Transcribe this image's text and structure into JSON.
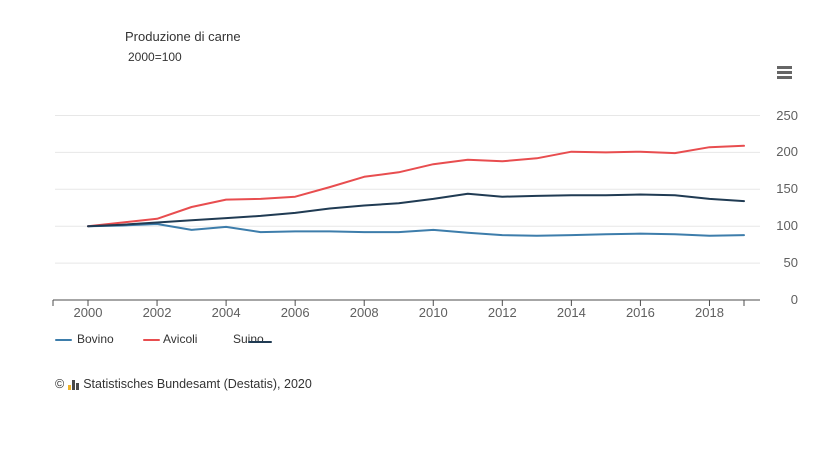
{
  "chart": {
    "title": "Produzione di carne",
    "subtitle": "2000=100",
    "menu_icon": "hamburger-menu-icon",
    "credits_symbol": "©",
    "credits_logo": "destatis-bar-chart-icon",
    "credits": "Statistisches Bundesamt (Destatis), 2020"
  },
  "chart_data": {
    "type": "line",
    "title": "Produzione di carne",
    "subtitle": "2000=100",
    "x": [
      2000,
      2001,
      2002,
      2003,
      2004,
      2005,
      2006,
      2007,
      2008,
      2009,
      2010,
      2011,
      2012,
      2013,
      2014,
      2015,
      2016,
      2017,
      2018,
      2019
    ],
    "series": [
      {
        "name": "Bovino",
        "color": "#3d7dab",
        "values": [
          100,
          101,
          103,
          95,
          99,
          92,
          93,
          93,
          92,
          92,
          95,
          91,
          88,
          87,
          88,
          89,
          90,
          89,
          87,
          88
        ]
      },
      {
        "name": "Avicoli",
        "color": "#e84d4f",
        "values": [
          100,
          105,
          110,
          126,
          136,
          137,
          140,
          153,
          167,
          173,
          184,
          190,
          188,
          192,
          201,
          200,
          201,
          199,
          207,
          209
        ]
      },
      {
        "name": "Suino",
        "color": "#203b53",
        "values": [
          100,
          102,
          105,
          108,
          111,
          114,
          118,
          124,
          128,
          131,
          137,
          144,
          140,
          141,
          142,
          142,
          143,
          142,
          137,
          134
        ]
      }
    ],
    "xticks": [
      2000,
      2002,
      2004,
      2006,
      2008,
      2010,
      2012,
      2014,
      2016,
      2018
    ],
    "yticks": [
      0,
      50,
      100,
      150,
      200,
      250
    ],
    "ylim": [
      0,
      250
    ],
    "grid": true,
    "legend_position": "bottom-left",
    "axis_color": "#4d4d4d",
    "grid_color": "#e7e7e7"
  }
}
